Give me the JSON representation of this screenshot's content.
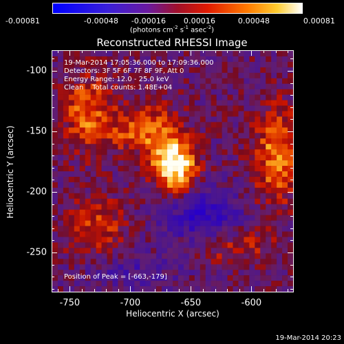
{
  "colorbar": {
    "tick_labels": [
      "-0.00081",
      "-0.00048",
      "-0.00016",
      "0.00016",
      "0.00048",
      "0.00081"
    ],
    "unit_label": "(photons cm",
    "unit_exp1": "-2",
    "unit_mid": " s",
    "unit_exp2": "-1",
    "unit_mid2": " asec",
    "unit_exp3": "-2",
    "unit_end": ")",
    "min": -0.00081,
    "max": 0.00081
  },
  "title": "Reconstructed RHESSI Image",
  "info": {
    "time": "19-Mar-2014 17:05:36.000 to 17:09:36.000",
    "detectors": "Detectors: 3F 5F 6F 7F 8F 9F, Att 0",
    "energy": "Energy Range: 12.0 - 25.0 keV",
    "clean": "Clean    Total counts: 1.48E+04"
  },
  "peak": "Position of Peak = [-663,-179]",
  "axes": {
    "xlabel": "Heliocentric X (arcsec)",
    "ylabel": "Heliocentric Y (arcsec)",
    "x_ticks": [
      "-750",
      "-700",
      "-650",
      "-600"
    ],
    "y_ticks": [
      "-100",
      "-150",
      "-200",
      "-250"
    ],
    "xlim": [
      -765,
      -565
    ],
    "ylim": [
      -283,
      -83
    ]
  },
  "timestamp": "19-Mar-2014 20:23",
  "map": {
    "peak_x": -663,
    "peak_y": -179
  }
}
